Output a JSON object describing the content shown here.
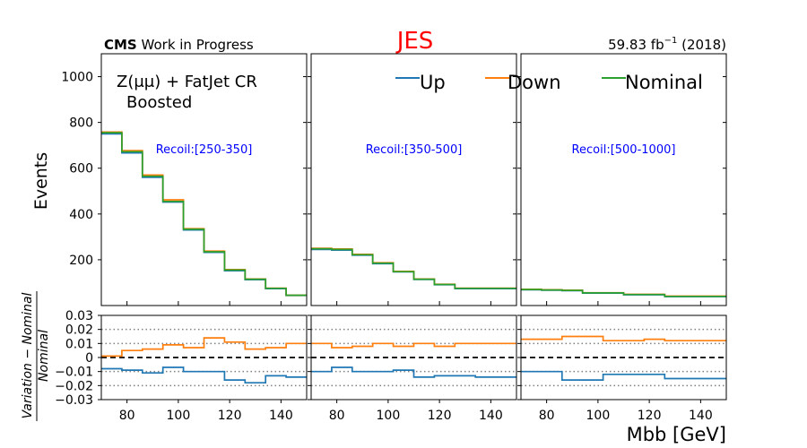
{
  "header": {
    "cms_bold": "CMS",
    "cms_rest": " Work in Progress",
    "title": "JES",
    "lumi_main": "59.83 fb",
    "lumi_exp": "−1",
    "lumi_year": " (2018)"
  },
  "labels": {
    "region_line1": "Z(μμ) + FatJet CR",
    "region_line2": "Boosted",
    "ylabel_top": "Events",
    "ylabel_ratio": "Variation − Nominal",
    "ylabel_ratio_den": "Nominal",
    "xlabel": "Mbb [GeV]"
  },
  "colors": {
    "up": "#1f77b4",
    "down": "#ff7f0e",
    "nominal": "#2ca02c",
    "title": "#ff0000",
    "recoil": "#0000ff"
  },
  "chart_data": {
    "type": "histogram",
    "x_edges": [
      70,
      78,
      86,
      94,
      102,
      110,
      118,
      126,
      134,
      142,
      150
    ],
    "xlim": [
      70,
      150
    ],
    "x_ticks": [
      "80",
      "100",
      "120",
      "140"
    ],
    "legend": {
      "placement": "top",
      "entries": [
        "Up",
        "Down",
        "Nominal"
      ]
    },
    "top": {
      "ylim": [
        0,
        1100
      ],
      "y_ticks": [
        "200",
        "400",
        "600",
        "800",
        "1000"
      ]
    },
    "ratio": {
      "ylim": [
        -0.03,
        0.03
      ],
      "y_ticks": [
        "0.03",
        "0.02",
        "0.01",
        "0",
        "−0.01",
        "−0.02",
        "−0.03"
      ],
      "dotted_lines": [
        0.02,
        0.01,
        -0.01,
        -0.02
      ],
      "dashed_line": 0
    },
    "panels": [
      {
        "region": "Recoil:[250-350]",
        "nominal": [
          755,
          672,
          565,
          455,
          333,
          235,
          155,
          115,
          75,
          45
        ],
        "up": [
          750,
          667,
          560,
          452,
          330,
          232,
          152,
          113,
          74,
          44
        ],
        "down": [
          758,
          677,
          570,
          462,
          336,
          238,
          157,
          116,
          76,
          45
        ],
        "ratio_up": [
          -0.008,
          -0.009,
          -0.011,
          -0.007,
          -0.01,
          -0.01,
          -0.016,
          -0.018,
          -0.013,
          -0.014
        ],
        "ratio_down": [
          0.001,
          0.005,
          0.006,
          0.009,
          0.007,
          0.014,
          0.011,
          0.006,
          0.007,
          0.01
        ]
      },
      {
        "region": "Recoil:[350-500]",
        "nominal": [
          248,
          245,
          222,
          185,
          148,
          115,
          92,
          75,
          75,
          75
        ],
        "up": [
          245,
          242,
          220,
          183,
          147,
          114,
          91,
          74,
          74,
          74
        ],
        "down": [
          250,
          247,
          224,
          187,
          149,
          116,
          93,
          76,
          76,
          76
        ],
        "ratio_up": [
          -0.01,
          -0.007,
          -0.01,
          -0.01,
          -0.009,
          -0.014,
          -0.013,
          -0.013,
          -0.014,
          -0.014
        ],
        "ratio_down": [
          0.01,
          0.007,
          0.008,
          0.01,
          0.008,
          0.01,
          0.008,
          0.01,
          0.01,
          0.01
        ]
      },
      {
        "region": "Recoil:[500-1000]",
        "nominal": [
          70,
          68,
          66,
          55,
          55,
          48,
          48,
          40,
          40,
          40
        ],
        "up": [
          69,
          67,
          65,
          54,
          54,
          47,
          47,
          39,
          39,
          39
        ],
        "down": [
          71,
          69,
          67,
          56,
          56,
          49,
          49,
          41,
          41,
          41
        ],
        "ratio_up": [
          -0.01,
          -0.01,
          -0.016,
          -0.016,
          -0.012,
          -0.012,
          -0.012,
          -0.015,
          -0.015,
          -0.015
        ],
        "ratio_down": [
          0.013,
          0.013,
          0.015,
          0.015,
          0.012,
          0.012,
          0.013,
          0.012,
          0.012,
          0.012
        ]
      }
    ]
  }
}
